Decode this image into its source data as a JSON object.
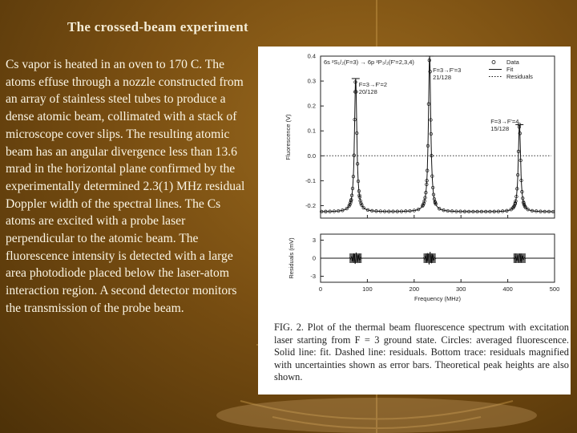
{
  "slide": {
    "title": "The crossed-beam experiment",
    "body": "Cs vapor is heated in an oven to 170 C. The atoms effuse through a nozzle constructed from an array of stainless steel tubes to produce a dense atomic beam, collimated with a stack of microscope cover slips. The resulting atomic beam has an angular divergence less than 13.6 mrad in the horizontal plane confirmed by the experimentally determined 2.3(1) MHz residual Doppler width of the spectral lines. The Cs atoms are excited with a probe laser perpendicular to the atomic beam. The fluorescence intensity is detected with a large area photodiode placed below the laser-atom interaction region. A second detector monitors the transmission of the probe beam."
  },
  "figure": {
    "caption": "FIG. 2.   Plot of the thermal beam fluorescence spectrum with excitation laser starting from F = 3 ground state. Circles: averaged fluorescence. Solid line: fit. Dashed line: residuals. Bottom trace: residuals magnified with uncertainties shown as error bars. Theoretical peak heights are also shown.",
    "transition_label": "6s ²S₁/₂(F=3) → 6p ²P₃/₂(F'=2,3,4)",
    "legend": [
      "Data",
      "Fit",
      "Residuals"
    ],
    "peak_labels": [
      {
        "line1": "F=3→F'=2",
        "line2": "20/128"
      },
      {
        "line1": "F=3→F'=3",
        "line2": "21/128"
      },
      {
        "line1": "F=3→F'=4",
        "line2": "15/128"
      }
    ],
    "top_ylabel": "Fluorescence (V)",
    "bottom_ylabel": "Residuals (mV)",
    "xlabel": "Frequency (MHz)"
  },
  "chart_data": [
    {
      "type": "scatter",
      "title": "",
      "xlabel": "Frequency (MHz)",
      "ylabel": "Fluorescence (V)",
      "xlim": [
        0,
        500
      ],
      "ylim": [
        -0.25,
        0.4
      ],
      "yticks": [
        -0.2,
        -0.1,
        0.0,
        0.1,
        0.2,
        0.3,
        0.4
      ],
      "xticks": [
        0,
        100,
        200,
        300,
        400,
        500
      ],
      "baseline": -0.225,
      "peaks": [
        {
          "center": 75,
          "height": 0.31,
          "width": 6,
          "label": "F=3→F'=2",
          "strength": "20/128"
        },
        {
          "center": 233,
          "height": 0.4,
          "width": 6,
          "label": "F=3→F'=3",
          "strength": "21/128"
        },
        {
          "center": 425,
          "height": 0.125,
          "width": 6,
          "label": "F=3→F'=4",
          "strength": "15/128"
        }
      ],
      "series": [
        {
          "name": "Data",
          "marker": "circle"
        },
        {
          "name": "Fit",
          "style": "solid"
        },
        {
          "name": "Residuals",
          "style": "dotted",
          "value": 0.0
        }
      ],
      "theoretical_peak_heights": [
        0.31,
        0.4,
        0.125
      ]
    },
    {
      "type": "scatter",
      "title": "",
      "xlabel": "Frequency (MHz)",
      "ylabel": "Residuals (mV)",
      "xlim": [
        0,
        500
      ],
      "ylim": [
        -4,
        4
      ],
      "yticks": [
        -3,
        0,
        3
      ],
      "xticks": [
        0,
        100,
        200,
        300,
        400,
        500
      ],
      "residual_bursts": [
        {
          "center": 75,
          "amplitude": 1.0
        },
        {
          "center": 233,
          "amplitude": 1.1
        },
        {
          "center": 425,
          "amplitude": 0.8
        }
      ]
    }
  ]
}
